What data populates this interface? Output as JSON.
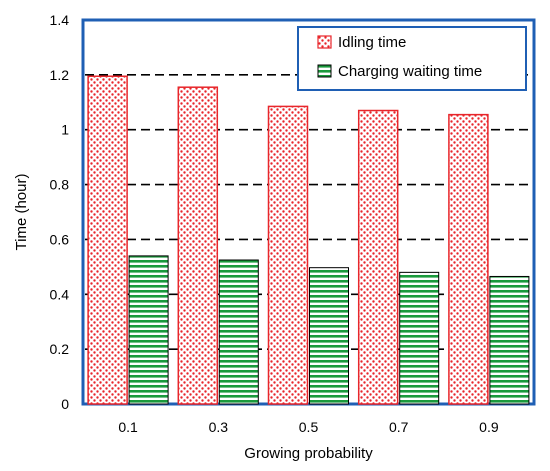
{
  "chart_data": {
    "type": "bar",
    "title": "",
    "xlabel": "Growing probability",
    "ylabel": "Time (hour)",
    "categories": [
      "0.1",
      "0.3",
      "0.5",
      "0.7",
      "0.9"
    ],
    "ylim": [
      0,
      1.4
    ],
    "yticks": [
      "0",
      "0.2",
      "0.4",
      "0.6",
      "0.8",
      "1",
      "1.2",
      "1.4"
    ],
    "grid": "horizontal dashed",
    "legend_position": "top-right",
    "series": [
      {
        "name": "Idling time",
        "values": [
          1.195,
          1.155,
          1.085,
          1.07,
          1.055
        ],
        "color": "#e8262b",
        "pattern": "dots"
      },
      {
        "name": "Charging waiting time",
        "values": [
          0.54,
          0.525,
          0.497,
          0.48,
          0.465
        ],
        "color": "#1a9a3c",
        "pattern": "horizontal-lines"
      }
    ],
    "frame_color": "#1f5fb4"
  }
}
